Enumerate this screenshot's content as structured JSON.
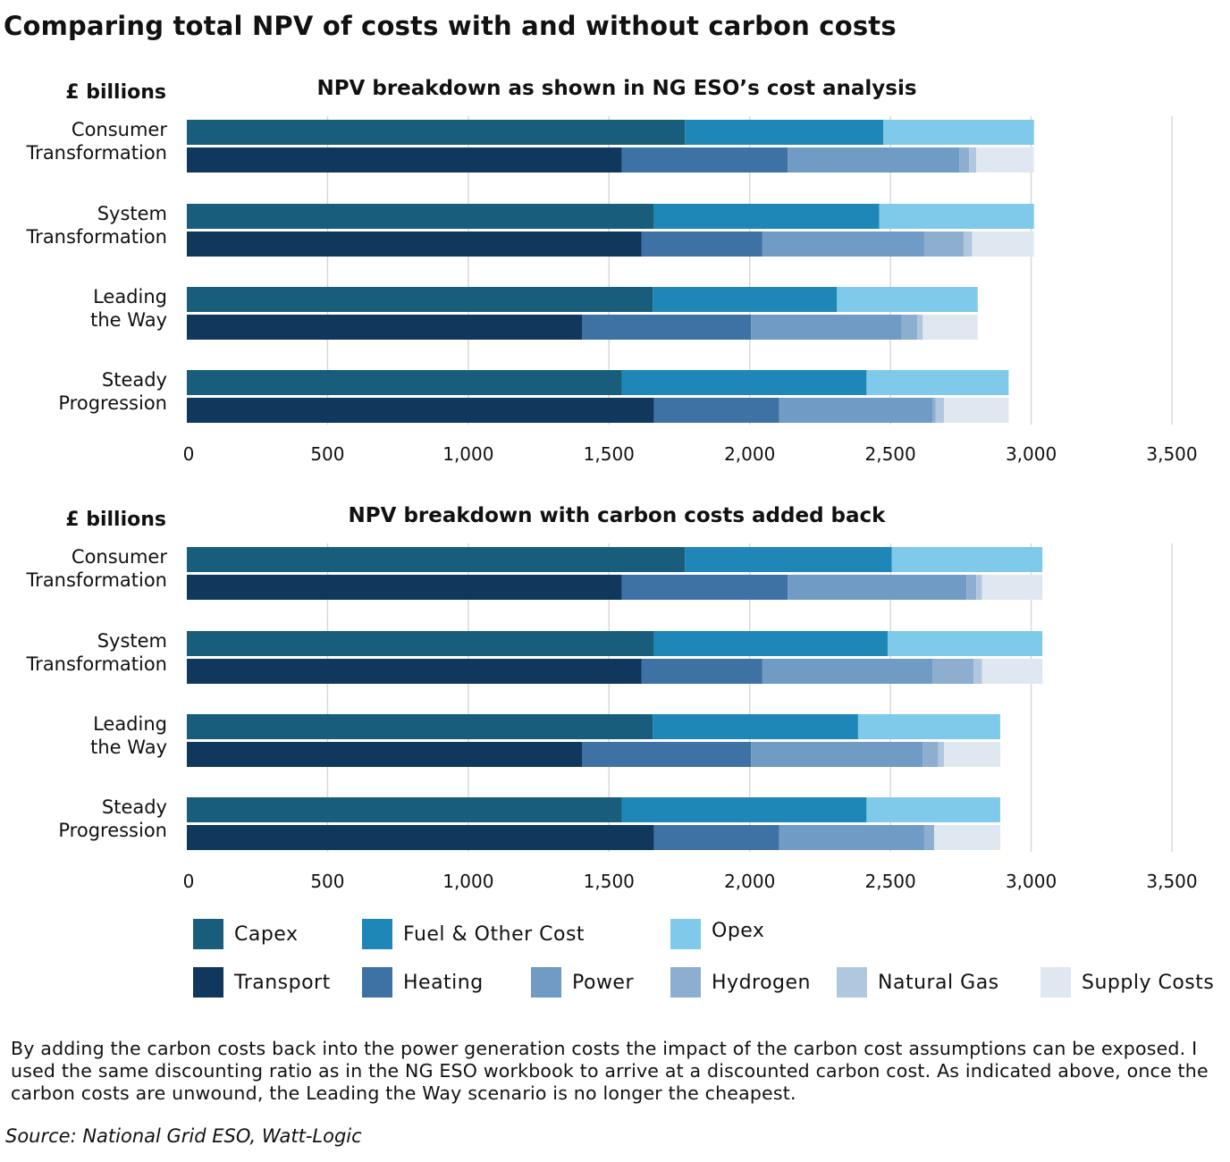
{
  "title": "Comparing total NPV of costs with and without carbon costs",
  "colors": {
    "Capex": "#185e7c",
    "Fuel & Other Cost": "#1f87b8",
    "Opex": "#7fcaea",
    "Transport": "#10375c",
    "Heating": "#3f72a4",
    "Power": "#6f9bc5",
    "Hydrogen": "#8daecf",
    "Natural Gas": "#b0c8df",
    "Supply Costs": "#dfe7f0",
    "grid": "#d9d9d9"
  },
  "legend": {
    "row1": [
      "Capex",
      "Fuel & Other Cost",
      "Opex"
    ],
    "row2": [
      "Transport",
      "Heating",
      "Power",
      "Hydrogen",
      "Natural Gas",
      "Supply Costs"
    ]
  },
  "chart_data": [
    {
      "type": "bar",
      "orientation": "horizontal-stacked",
      "title": "NPV breakdown as shown in NG ESO’s cost analysis",
      "unit_label": "£ billions",
      "xlim": [
        0,
        3500
      ],
      "xticks": [
        "0",
        "500",
        "1,000",
        "1,500",
        "2,000",
        "2,500",
        "3,000",
        "3,500"
      ],
      "grid": true,
      "categories": [
        {
          "label_lines": [
            "Consumer",
            "Transformation"
          ],
          "top_bar": [
            [
              "Capex",
              1770
            ],
            [
              "Fuel & Other Cost",
              705
            ],
            [
              "Opex",
              535
            ]
          ],
          "bottom_bar": [
            [
              "Transport",
              1545
            ],
            [
              "Heating",
              590
            ],
            [
              "Power",
              610
            ],
            [
              "Hydrogen",
              35
            ],
            [
              "Natural Gas",
              25
            ],
            [
              "Supply Costs",
              205
            ]
          ]
        },
        {
          "label_lines": [
            "System",
            "Transformation"
          ],
          "top_bar": [
            [
              "Capex",
              1660
            ],
            [
              "Fuel & Other Cost",
              800
            ],
            [
              "Opex",
              550
            ]
          ],
          "bottom_bar": [
            [
              "Transport",
              1615
            ],
            [
              "Heating",
              430
            ],
            [
              "Power",
              575
            ],
            [
              "Hydrogen",
              140
            ],
            [
              "Natural Gas",
              30
            ],
            [
              "Supply Costs",
              220
            ]
          ]
        },
        {
          "label_lines": [
            "Leading",
            "the Way"
          ],
          "top_bar": [
            [
              "Capex",
              1655
            ],
            [
              "Fuel & Other Cost",
              655
            ],
            [
              "Opex",
              500
            ]
          ],
          "bottom_bar": [
            [
              "Transport",
              1405
            ],
            [
              "Heating",
              600
            ],
            [
              "Power",
              535
            ],
            [
              "Hydrogen",
              55
            ],
            [
              "Natural Gas",
              20
            ],
            [
              "Supply Costs",
              195
            ]
          ]
        },
        {
          "label_lines": [
            "Steady",
            "Progression"
          ],
          "top_bar": [
            [
              "Capex",
              1545
            ],
            [
              "Fuel & Other Cost",
              870
            ],
            [
              "Opex",
              505
            ]
          ],
          "bottom_bar": [
            [
              "Transport",
              1660
            ],
            [
              "Heating",
              445
            ],
            [
              "Power",
              545
            ],
            [
              "Hydrogen",
              10
            ],
            [
              "Natural Gas",
              30
            ],
            [
              "Supply Costs",
              230
            ]
          ]
        }
      ]
    },
    {
      "type": "bar",
      "orientation": "horizontal-stacked",
      "title": "NPV breakdown with carbon costs added back",
      "unit_label": "£ billions",
      "xlim": [
        0,
        3500
      ],
      "xticks": [
        "0",
        "500",
        "1,000",
        "1,500",
        "2,000",
        "2,500",
        "3,000",
        "3,500"
      ],
      "grid": true,
      "categories": [
        {
          "label_lines": [
            "Consumer",
            "Transformation"
          ],
          "top_bar": [
            [
              "Capex",
              1770
            ],
            [
              "Fuel & Other Cost",
              735
            ],
            [
              "Opex",
              535
            ]
          ],
          "bottom_bar": [
            [
              "Transport",
              1545
            ],
            [
              "Heating",
              590
            ],
            [
              "Power",
              635
            ],
            [
              "Hydrogen",
              35
            ],
            [
              "Natural Gas",
              20
            ],
            [
              "Supply Costs",
              215
            ]
          ]
        },
        {
          "label_lines": [
            "System",
            "Transformation"
          ],
          "top_bar": [
            [
              "Capex",
              1660
            ],
            [
              "Fuel & Other Cost",
              830
            ],
            [
              "Opex",
              550
            ]
          ],
          "bottom_bar": [
            [
              "Transport",
              1615
            ],
            [
              "Heating",
              430
            ],
            [
              "Power",
              605
            ],
            [
              "Hydrogen",
              145
            ],
            [
              "Natural Gas",
              30
            ],
            [
              "Supply Costs",
              215
            ]
          ]
        },
        {
          "label_lines": [
            "Leading",
            "the Way"
          ],
          "top_bar": [
            [
              "Capex",
              1655
            ],
            [
              "Fuel & Other Cost",
              730
            ],
            [
              "Opex",
              505
            ]
          ],
          "bottom_bar": [
            [
              "Transport",
              1405
            ],
            [
              "Heating",
              600
            ],
            [
              "Power",
              610
            ],
            [
              "Hydrogen",
              55
            ],
            [
              "Natural Gas",
              20
            ],
            [
              "Supply Costs",
              200
            ]
          ]
        },
        {
          "label_lines": [
            "Steady",
            "Progression"
          ],
          "top_bar": [
            [
              "Capex",
              1545
            ],
            [
              "Fuel & Other Cost",
              870
            ],
            [
              "Opex",
              475
            ]
          ],
          "bottom_bar": [
            [
              "Transport",
              1660
            ],
            [
              "Heating",
              445
            ],
            [
              "Power",
              515
            ],
            [
              "Hydrogen",
              35
            ],
            [
              "Natural Gas",
              0
            ],
            [
              "Supply Costs",
              235
            ]
          ]
        }
      ]
    }
  ],
  "note": "By adding the carbon costs back into the power generation costs the impact of the carbon cost assumptions can be exposed. I used the same discounting ratio as in the NG ESO workbook to arrive at a discounted carbon cost. As indicated above, once the carbon costs are unwound, the Leading the Way scenario is no longer the cheapest.",
  "source": "Source: National Grid ESO, Watt-Logic"
}
